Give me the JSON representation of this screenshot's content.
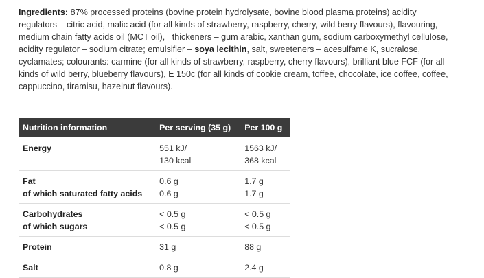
{
  "ingredients": {
    "lines": [
      [
        "Ingredients:",
        " 87% processed proteins (bovine protein hydrolysate, bovine blood plasma proteins) acidity"
      ],
      [
        "regulators – citric acid, malic acid (for all kinds of strawberry, raspberry, cherry, wild berry flavours), flavouring,"
      ],
      [
        "medium chain fatty acids oil (MCT oil),   thickeners – gum arabic, xanthan gum, sodium carboxymethyl cellulose,"
      ],
      [
        "acidity regulator – sodium citrate; emulsifier – ",
        "soya lecithin",
        ", salt, sweeteners – acesulfame K, sucralose,"
      ],
      [
        "cyclamates; colourants: carmine (for all kinds of strawberry, raspberry, cherry flavours), brilliant blue FCF (for all"
      ],
      [
        "kinds of wild berry, blueberry flavours), E 150c (for all kinds of cookie cream, toffee, chocolate, ice coffee, coffee,"
      ],
      [
        "cappuccino, tiramisu, hazelnut flavours)."
      ]
    ]
  },
  "table": {
    "header": [
      "Nutrition information",
      "Per serving (35 g)",
      "Per 100 g"
    ],
    "rows": [
      [
        [
          "Energy"
        ],
        [
          "551 kJ/",
          "130 kcal"
        ],
        [
          "1563 kJ/",
          "368 kcal"
        ]
      ],
      [
        [
          "Fat",
          "of which saturated fatty acids"
        ],
        [
          "0.6 g",
          "0.6 g"
        ],
        [
          "1.7 g",
          "1.7 g"
        ]
      ],
      [
        [
          "Carbohydrates",
          "of which sugars"
        ],
        [
          "< 0.5 g",
          "< 0.5 g"
        ],
        [
          "< 0.5 g",
          "< 0.5 g"
        ]
      ],
      [
        [
          "Protein"
        ],
        [
          "31 g"
        ],
        [
          "88 g"
        ]
      ],
      [
        [
          "Salt"
        ],
        [
          "0.8 g"
        ],
        [
          "2.4 g"
        ]
      ]
    ]
  }
}
